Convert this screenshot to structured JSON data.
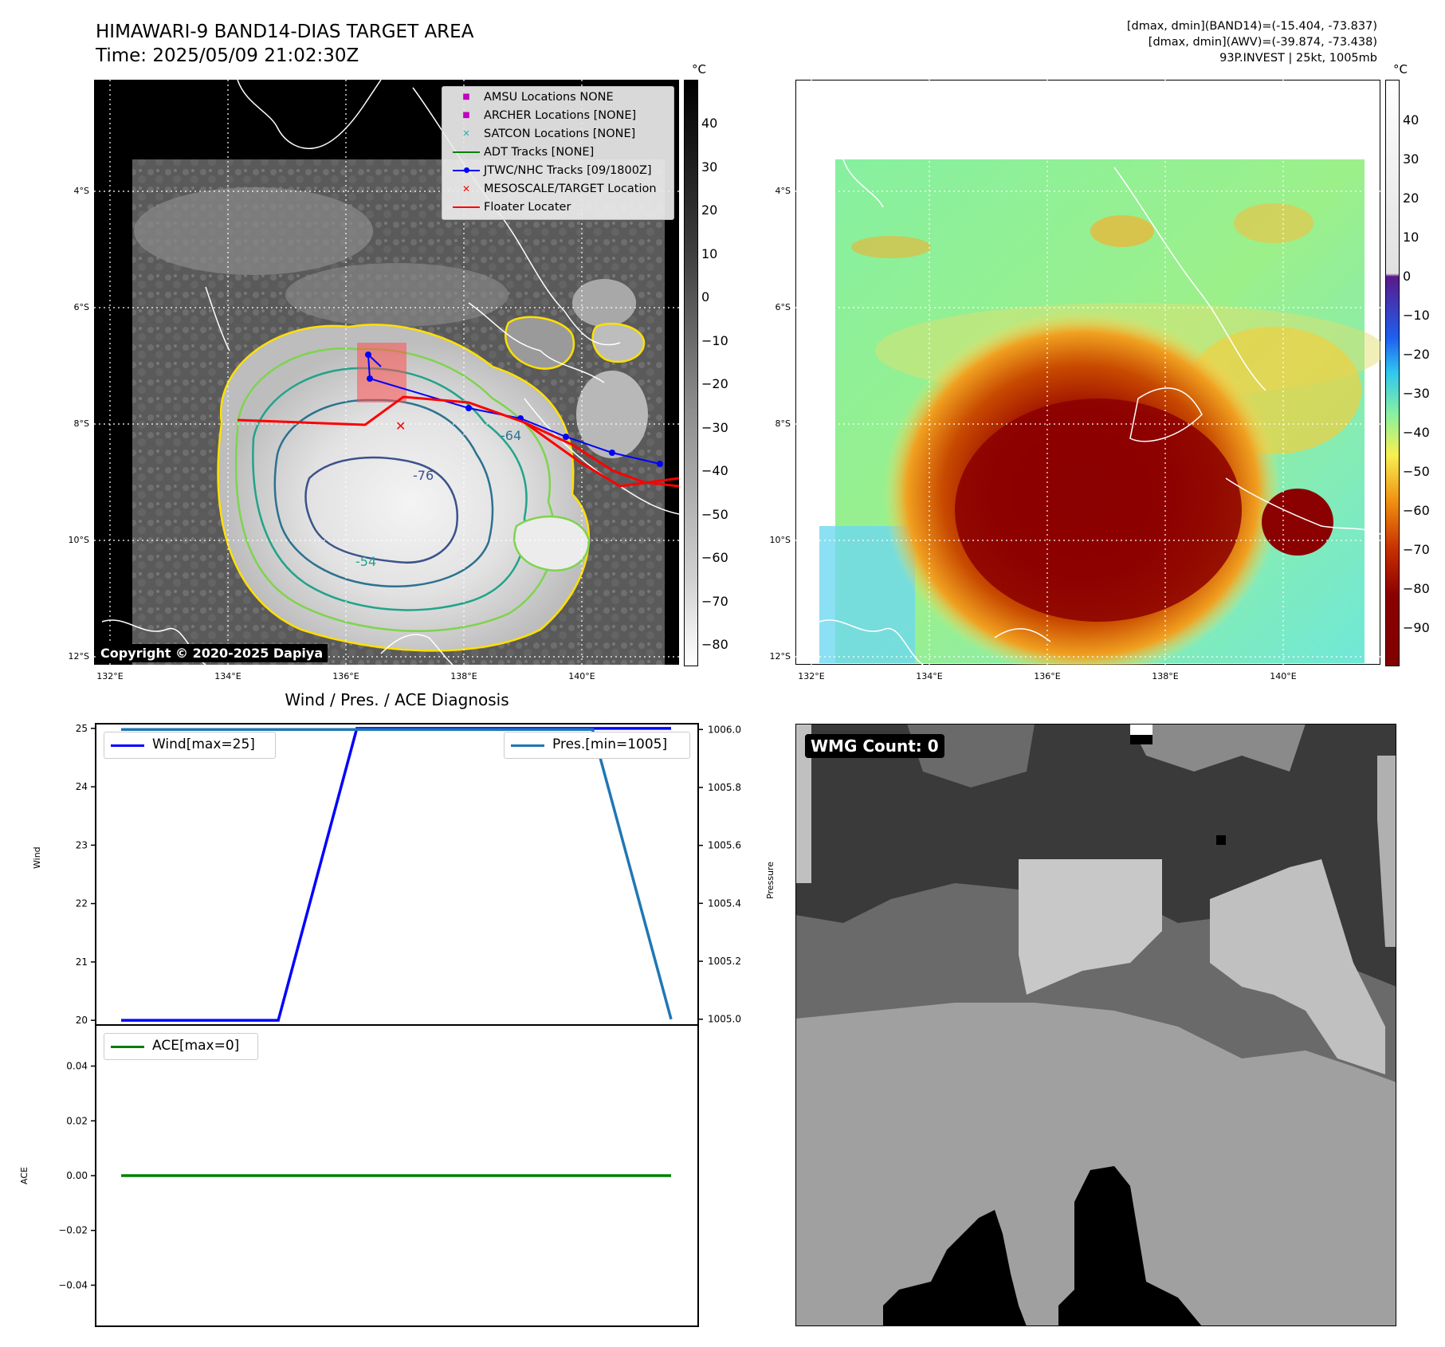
{
  "header": {
    "title_line1": "HIMAWARI-9 BAND14-DIAS TARGET AREA",
    "title_line2": "Time: 2025/05/09 21:02:30Z",
    "info_line1": "[dmax, dmin](BAND14)=(-15.404, -73.837)",
    "info_line2": "[dmax, dmin](AWV)=(-39.874, -73.438)",
    "info_line3": "93P.INVEST | 25kt, 1005mb"
  },
  "map_axes": {
    "lat_labels": [
      "4°S",
      "6°S",
      "8°S",
      "10°S",
      "12°S"
    ],
    "lon_labels": [
      "132°E",
      "134°E",
      "136°E",
      "138°E",
      "140°E"
    ]
  },
  "colorbar_left": {
    "unit": "°C",
    "ticks": [
      "40",
      "30",
      "20",
      "10",
      "0",
      "−10",
      "−20",
      "−30",
      "−40",
      "−50",
      "−60",
      "−70",
      "−80"
    ]
  },
  "colorbar_right": {
    "unit": "°C",
    "ticks": [
      "40",
      "30",
      "20",
      "10",
      "0",
      "−10",
      "−20",
      "−30",
      "−40",
      "−50",
      "−60",
      "−70",
      "−80",
      "−90"
    ]
  },
  "legend": {
    "items": [
      {
        "label": "AMSU Locations NONE",
        "marker": "■",
        "color": "#c000c0"
      },
      {
        "label": "ARCHER Locations [NONE]",
        "marker": "■",
        "color": "#c000c0"
      },
      {
        "label": "SATCON Locations [NONE]",
        "marker": "✕",
        "color": "#20b0b0"
      },
      {
        "label": "ADT Tracks [NONE]",
        "marker": "line",
        "color": "#008000"
      },
      {
        "label": "JTWC/NHC Tracks [09/1800Z]",
        "marker": "line-dot",
        "color": "#0000ff"
      },
      {
        "label": "MESOSCALE/TARGET Location",
        "marker": "✕",
        "color": "#ff0000"
      },
      {
        "label": "Floater Locater",
        "marker": "line",
        "color": "#ff0000"
      }
    ]
  },
  "contour_labels": [
    "-64",
    "-54",
    "-76"
  ],
  "copyright": "Copyright © 2020-2025 Dapiya",
  "wmg_count": "WMG Count: 0",
  "diagnosis": {
    "title": "Wind / Pres. / ACE Diagnosis",
    "wind_axis_label": "Wind",
    "pressure_axis_label": "Pressure",
    "ace_axis_label": "ACE",
    "wind_legend": "Wind[max=25]",
    "pressure_legend": "Pres.[min=1005]",
    "ace_legend": "ACE[max=0]"
  },
  "chart_data": [
    {
      "type": "line",
      "title": "Wind / Pres. / ACE Diagnosis",
      "ylabel": "Wind",
      "y2label": "Pressure",
      "ylim": [
        19.92,
        25.08
      ],
      "y2lim": [
        1004.98,
        1006.02
      ],
      "yticks": [
        "20",
        "21",
        "22",
        "23",
        "24",
        "25"
      ],
      "y2ticks": [
        "1005.0",
        "1005.2",
        "1005.4",
        "1005.6",
        "1005.8",
        "1006.0"
      ],
      "x": [
        0,
        1,
        2,
        3,
        4,
        5,
        6,
        7
      ],
      "series": [
        {
          "name": "Wind[max=25]",
          "axis": "left",
          "color": "#0000ff",
          "values": [
            20,
            20,
            20,
            25,
            25,
            25,
            25,
            25
          ]
        },
        {
          "name": "Pres.[min=1005]",
          "axis": "right",
          "color": "#1f77b4",
          "values": [
            1006,
            1006,
            1006,
            1006,
            1006,
            1006,
            1006,
            1005
          ]
        }
      ]
    },
    {
      "type": "line",
      "ylabel": "ACE",
      "ylim": [
        -0.055,
        0.055
      ],
      "yticks": [
        "0.04",
        "0.02",
        "0.00",
        "−0.02",
        "−0.04"
      ],
      "x": [
        0,
        1,
        2,
        3,
        4,
        5,
        6,
        7
      ],
      "series": [
        {
          "name": "ACE[max=0]",
          "color": "#008000",
          "values": [
            0,
            0,
            0,
            0,
            0,
            0,
            0,
            0
          ]
        }
      ]
    }
  ]
}
